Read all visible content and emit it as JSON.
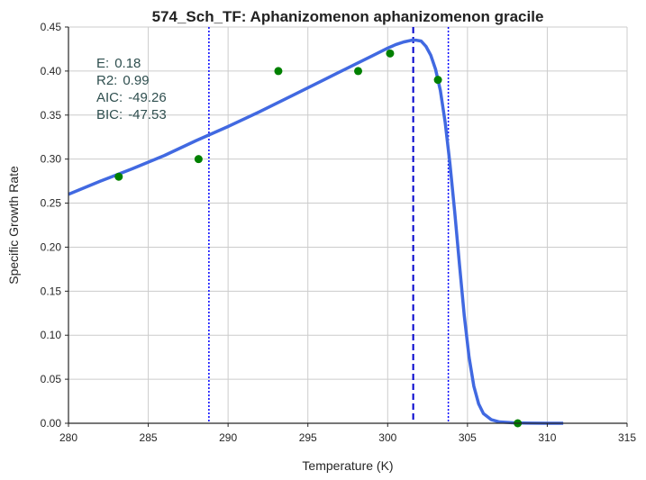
{
  "chart_data": {
    "type": "line",
    "title": "574_Sch_TF: Aphanizomenon aphanizomenon gracile",
    "xlabel": "Temperature (K)",
    "ylabel": "Specific Growth Rate",
    "xlim": [
      280,
      315
    ],
    "ylim": [
      0.0,
      0.45
    ],
    "x_ticks": [
      "280",
      "285",
      "290",
      "295",
      "300",
      "305",
      "310",
      "315"
    ],
    "y_ticks": [
      "0.00",
      "0.05",
      "0.10",
      "0.15",
      "0.20",
      "0.25",
      "0.30",
      "0.35",
      "0.40",
      "0.45"
    ],
    "grid": true,
    "observed": {
      "color": "#008000",
      "points": [
        {
          "x": 283.15,
          "y": 0.28
        },
        {
          "x": 288.15,
          "y": 0.3
        },
        {
          "x": 293.15,
          "y": 0.4
        },
        {
          "x": 298.15,
          "y": 0.4
        },
        {
          "x": 300.15,
          "y": 0.42
        },
        {
          "x": 303.15,
          "y": 0.39
        },
        {
          "x": 308.15,
          "y": 0.0
        }
      ]
    },
    "fit": {
      "color": "#4169e1",
      "points": [
        [
          280.0,
          0.26
        ],
        [
          282.0,
          0.275
        ],
        [
          284.0,
          0.289
        ],
        [
          286.0,
          0.304
        ],
        [
          288.0,
          0.321
        ],
        [
          290.0,
          0.337
        ],
        [
          292.0,
          0.354
        ],
        [
          294.0,
          0.372
        ],
        [
          296.0,
          0.39
        ],
        [
          297.0,
          0.399
        ],
        [
          298.0,
          0.408
        ],
        [
          299.0,
          0.417
        ],
        [
          300.0,
          0.426
        ],
        [
          300.5,
          0.43
        ],
        [
          301.0,
          0.433
        ],
        [
          301.5,
          0.435
        ],
        [
          301.8,
          0.435
        ],
        [
          302.1,
          0.434
        ],
        [
          302.4,
          0.428
        ],
        [
          302.7,
          0.418
        ],
        [
          303.0,
          0.402
        ],
        [
          303.3,
          0.378
        ],
        [
          303.6,
          0.342
        ],
        [
          303.9,
          0.295
        ],
        [
          304.2,
          0.24
        ],
        [
          304.5,
          0.18
        ],
        [
          304.8,
          0.122
        ],
        [
          305.1,
          0.075
        ],
        [
          305.4,
          0.042
        ],
        [
          305.7,
          0.022
        ],
        [
          306.0,
          0.011
        ],
        [
          306.5,
          0.004
        ],
        [
          307.0,
          0.0015
        ],
        [
          308.0,
          0.0004
        ],
        [
          309.0,
          0.0001
        ],
        [
          310.0,
          0.0
        ],
        [
          311.0,
          0.0
        ]
      ]
    },
    "reference_lines": [
      {
        "x": 288.8,
        "style": "dotted",
        "color": "#0000ff"
      },
      {
        "x": 301.6,
        "style": "dashed",
        "color": "#0000cd"
      },
      {
        "x": 303.8,
        "style": "dotted",
        "color": "#0000ff"
      }
    ],
    "stats": [
      {
        "label": "E:",
        "value": "0.18"
      },
      {
        "label": "R2:",
        "value": "0.99"
      },
      {
        "label": "AIC:",
        "value": "-49.26"
      },
      {
        "label": "BIC:",
        "value": "-47.53"
      }
    ]
  }
}
